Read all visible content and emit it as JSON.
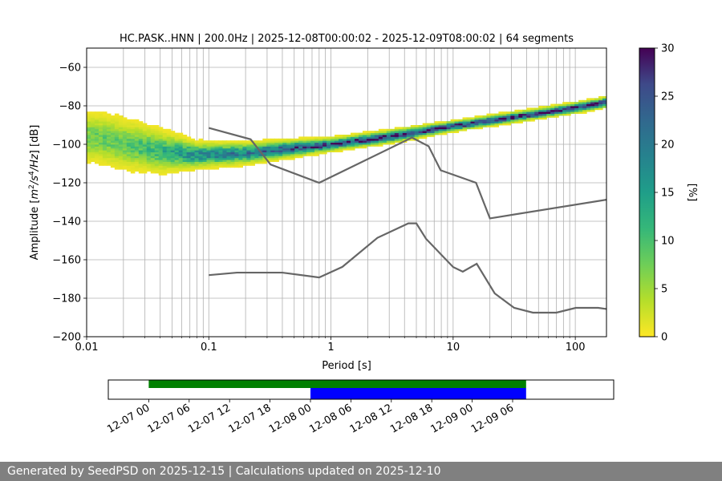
{
  "chart_data": [
    {
      "type": "heatmap",
      "title": "HC.PASK..HNN | 200.0Hz | 2025-12-08T00:00:02 - 2025-12-09T08:00:02 | 64 segments",
      "xlabel": "Period [s]",
      "ylabel_parts": [
        "Amplitude [",
        "m",
        "2",
        "/",
        "s",
        "4",
        "/",
        "Hz",
        "] [dB]"
      ],
      "xscale": "log",
      "xlim": [
        0.01,
        180
      ],
      "ylim": [
        -200,
        -50
      ],
      "xticks": [
        {
          "v": 0.01,
          "label": "0.01"
        },
        {
          "v": 0.1,
          "label": "0.1"
        },
        {
          "v": 1,
          "label": "1"
        },
        {
          "v": 10,
          "label": "10"
        },
        {
          "v": 100,
          "label": "100"
        }
      ],
      "yticks": [
        {
          "v": -60,
          "label": "−60"
        },
        {
          "v": -80,
          "label": "−80"
        },
        {
          "v": -100,
          "label": "−100"
        },
        {
          "v": -120,
          "label": "−120"
        },
        {
          "v": -140,
          "label": "−140"
        },
        {
          "v": -160,
          "label": "−160"
        },
        {
          "v": -180,
          "label": "−180"
        },
        {
          "v": -200,
          "label": "−200"
        }
      ],
      "grid": true,
      "colorbar": {
        "label": "[%]",
        "range": [
          0,
          30
        ],
        "colormap": "viridis_r",
        "ticks": [
          {
            "v": 0,
            "label": "0"
          },
          {
            "v": 5,
            "label": "5"
          },
          {
            "v": 10,
            "label": "10"
          },
          {
            "v": 15,
            "label": "15"
          },
          {
            "v": 20,
            "label": "20"
          },
          {
            "v": 25,
            "label": "25"
          },
          {
            "v": 30,
            "label": "30"
          }
        ]
      },
      "density_trend": [
        {
          "period": 0.012,
          "center": -97,
          "spread": 6,
          "peak": 8
        },
        {
          "period": 0.02,
          "center": -100,
          "spread": 6,
          "peak": 9
        },
        {
          "period": 0.04,
          "center": -104,
          "spread": 5,
          "peak": 12
        },
        {
          "period": 0.08,
          "center": -106,
          "spread": 3,
          "peak": 18
        },
        {
          "period": 0.2,
          "center": -105,
          "spread": 2.5,
          "peak": 20
        },
        {
          "period": 0.5,
          "center": -102.5,
          "spread": 2,
          "peak": 24
        },
        {
          "period": 1,
          "center": -100.5,
          "spread": 1.5,
          "peak": 26
        },
        {
          "period": 3,
          "center": -96.5,
          "spread": 1.5,
          "peak": 28
        },
        {
          "period": 10,
          "center": -91,
          "spread": 1.2,
          "peak": 28
        },
        {
          "period": 30,
          "center": -86.5,
          "spread": 1.2,
          "peak": 28
        },
        {
          "period": 100,
          "center": -81.5,
          "spread": 1.2,
          "peak": 29
        },
        {
          "period": 180,
          "center": -78.5,
          "spread": 1.2,
          "peak": 30
        }
      ],
      "noise_models": [
        {
          "points": [
            [
              0.1,
              -91.5
            ],
            [
              0.22,
              -97.4
            ],
            [
              0.32,
              -110.5
            ],
            [
              0.8,
              -120
            ],
            [
              4.6,
              -96.5
            ],
            [
              6.3,
              -101
            ],
            [
              7.9,
              -113.5
            ],
            [
              15.4,
              -120
            ],
            [
              20,
              -138.5
            ],
            [
              180,
              -128.8
            ]
          ]
        },
        {
          "points": [
            [
              0.1,
              -168
            ],
            [
              0.17,
              -166.7
            ],
            [
              0.4,
              -166.7
            ],
            [
              0.8,
              -169.2
            ],
            [
              1.24,
              -163.7
            ],
            [
              2.4,
              -148.6
            ],
            [
              4.3,
              -141.1
            ],
            [
              5,
              -141.1
            ],
            [
              6.0,
              -149.1
            ],
            [
              10,
              -163.8
            ],
            [
              12,
              -166.2
            ],
            [
              15.6,
              -162.1
            ],
            [
              21.9,
              -177.5
            ],
            [
              31.6,
              -185
            ],
            [
              45,
              -187.5
            ],
            [
              70,
              -187.5
            ],
            [
              101,
              -185
            ],
            [
              154,
              -185
            ],
            [
              180,
              -185.6
            ]
          ]
        }
      ]
    },
    {
      "type": "timeline",
      "xlim": [
        "2025-12-06T18:00",
        "2025-12-09T21:00"
      ],
      "xticks": [
        "12-07 00",
        "12-07 06",
        "12-07 12",
        "12-07 18",
        "12-08 00",
        "12-08 06",
        "12-08 12",
        "12-08 18",
        "12-09 00",
        "12-09 06"
      ],
      "xtick_times": [
        "2025-12-07T00:00",
        "2025-12-07T06:00",
        "2025-12-07T12:00",
        "2025-12-07T18:00",
        "2025-12-08T00:00",
        "2025-12-08T06:00",
        "2025-12-08T12:00",
        "2025-12-08T18:00",
        "2025-12-09T00:00",
        "2025-12-09T06:00"
      ],
      "bars": [
        {
          "start": "2025-12-07T00:00",
          "end": "2025-12-09T08:00",
          "color": "#008000",
          "row": "top"
        },
        {
          "start": "2025-12-08T00:00",
          "end": "2025-12-09T08:00",
          "color": "#0000ff",
          "row": "bottom"
        }
      ]
    }
  ],
  "footer": {
    "text": "Generated by SeedPSD on 2025-12-15 | Calculations updated on 2025-12-10"
  }
}
